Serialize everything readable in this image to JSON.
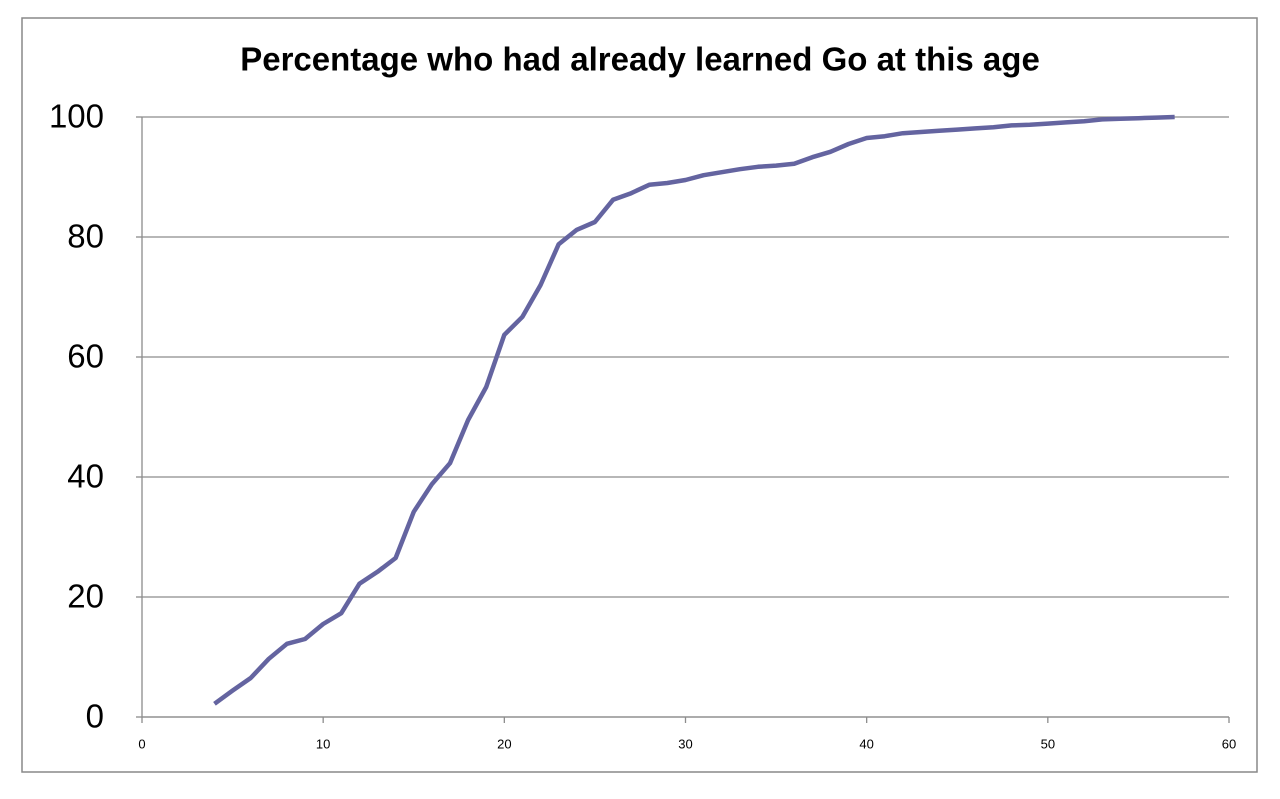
{
  "chart_data": {
    "type": "line",
    "title": "Percentage who had already learned Go at this age",
    "x": [
      4,
      5,
      6,
      7,
      8,
      9,
      10,
      11,
      12,
      13,
      14,
      15,
      16,
      17,
      18,
      19,
      20,
      21,
      22,
      23,
      24,
      25,
      26,
      27,
      28,
      29,
      30,
      31,
      32,
      33,
      34,
      35,
      36,
      37,
      38,
      39,
      40,
      41,
      42,
      43,
      44,
      45,
      46,
      47,
      48,
      49,
      50,
      51,
      52,
      53,
      54,
      55,
      56,
      57
    ],
    "series": [
      {
        "color": "#6464a0",
        "values": [
          2.2,
          4.4,
          6.5,
          9.7,
          12.2,
          13,
          15.5,
          17.3,
          22.2,
          24.2,
          26.5,
          34.2,
          38.8,
          42.3,
          49.5,
          55,
          63.7,
          66.7,
          72,
          78.8,
          81.2,
          82.5,
          86.2,
          87.3,
          88.7,
          89,
          89.5,
          90.3,
          90.8,
          91.3,
          91.7,
          91.9,
          92.2,
          93.3,
          94.2,
          95.5,
          96.5,
          96.8,
          97.3,
          97.5,
          97.7,
          97.9,
          98.1,
          98.3,
          98.6,
          98.7,
          98.9,
          99.1,
          99.3,
          99.6,
          99.7,
          99.8,
          99.9,
          100
        ]
      }
    ],
    "xlim": [
      0,
      60
    ],
    "xticks": [
      0,
      10,
      20,
      30,
      40,
      50,
      60
    ],
    "ylim": [
      0,
      100
    ],
    "yticks": [
      0,
      20,
      40,
      60,
      80,
      100
    ],
    "grid": true
  }
}
